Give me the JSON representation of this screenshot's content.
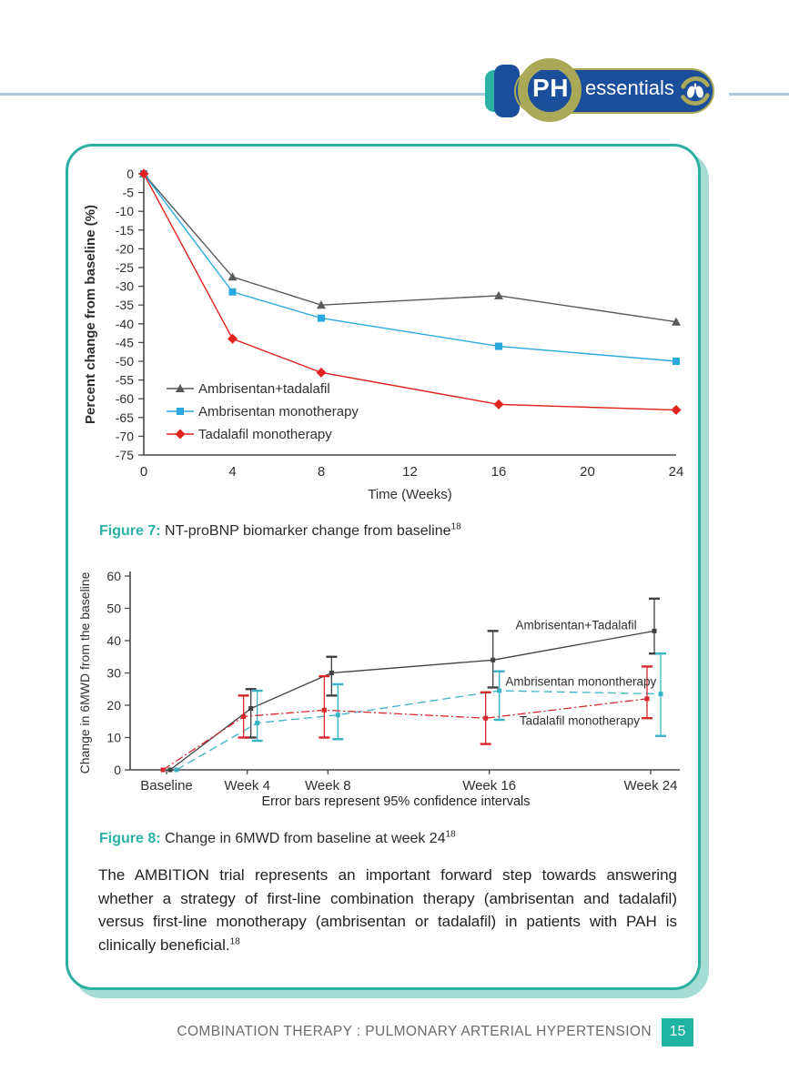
{
  "header": {
    "logo": {
      "ph": "PH",
      "essentials": "essentials"
    }
  },
  "figure7": {
    "label": "Figure 7:",
    "caption": " NT-proBNP biomarker change from baseline",
    "sup": "18"
  },
  "figure8": {
    "label": "Figure 8:",
    "caption": " Change in 6MWD from baseline at week 24",
    "sup": "18"
  },
  "paragraph": {
    "text": "The AMBITION trial represents an important forward step towards answering whether a strategy of first-line combination therapy (ambrisentan and tadalafil) versus first-line monotherapy (ambrisentan or tadalafil) in patients with PAH is clinically beneficial.",
    "sup": "18"
  },
  "footer": {
    "title": "COMBINATION THERAPY : PULMONARY ARTERIAL HYPERTENSION",
    "page": "15"
  },
  "colors": {
    "accent_teal": "#2bafa0",
    "caption_teal": "#2bb3a3",
    "page_badge_teal": "#1fb3a1",
    "header_line_blue": "#a9cadd",
    "logo_blue": "#1b4e9b",
    "logo_olive": "#a9a958",
    "series_gray": "#58595b",
    "series_blue": "#29a9e0",
    "series_red": "#e0231f",
    "series_black": "#3f4041",
    "series_cyan": "#3bb3c6",
    "series_red2": "#d8262d"
  },
  "chart_data": [
    {
      "type": "line",
      "x": [
        0,
        4,
        8,
        16,
        24
      ],
      "x_ticks": [
        0,
        4,
        8,
        12,
        16,
        20,
        24
      ],
      "xlabel": "Time (Weeks)",
      "ylabel": "Percent change from baseline (%)",
      "ylim": [
        -75,
        0
      ],
      "y_tick_step": 5,
      "legend_position": "inside-bottom-left",
      "grid": false,
      "series": [
        {
          "name": "Ambrisentan+tadalafil",
          "marker": "triangle",
          "color": "#58595b",
          "values": [
            0,
            -27.5,
            -35,
            -32.5,
            -39.5
          ]
        },
        {
          "name": "Ambrisentan monotherapy",
          "marker": "square",
          "color": "#29a9e0",
          "values": [
            0,
            -31.5,
            -38.5,
            -46,
            -50
          ]
        },
        {
          "name": "Tadalafil monotherapy",
          "marker": "diamond",
          "color": "#e0231f",
          "values": [
            0,
            -44,
            -53,
            -61.5,
            -63
          ]
        }
      ]
    },
    {
      "type": "line-errorbar",
      "categories": [
        "Baseline",
        "Week 4",
        "Week 8",
        "Week 16",
        "Week 24"
      ],
      "x_weeks": [
        0,
        4,
        8,
        16,
        24
      ],
      "xlabel": "",
      "ylabel": "Change in 6MWD from the baseline",
      "ylim": [
        0,
        60
      ],
      "y_tick_step": 10,
      "grid": false,
      "note": "Error bars represent 95% confidence intervals",
      "series": [
        {
          "name": "Ambrisentan+Tadalafil",
          "line_style": "solid",
          "color": "#3f4041",
          "values": [
            0,
            19,
            30,
            34,
            43
          ],
          "ci_low": [
            null,
            10,
            23,
            25.5,
            36
          ],
          "ci_high": [
            null,
            25,
            35,
            43,
            53
          ]
        },
        {
          "name": "Ambrisentan monontherapy",
          "line_style": "dashed",
          "color": "#3bb3c6",
          "values": [
            0,
            14.5,
            17,
            24.5,
            23.5
          ],
          "ci_low": [
            null,
            9,
            9.5,
            15.5,
            10.5
          ],
          "ci_high": [
            null,
            24.5,
            26.5,
            30.5,
            36
          ]
        },
        {
          "name": "Tadalafil monotherapy",
          "line_style": "dash-dot",
          "color": "#d8262d",
          "values": [
            0,
            16.5,
            18.5,
            16,
            22
          ],
          "ci_low": [
            null,
            10,
            10,
            8,
            16
          ],
          "ci_high": [
            null,
            23,
            29,
            24,
            32
          ]
        }
      ],
      "annotations": [
        {
          "text": "Ambrisentan+Tadalafil",
          "week": 17.3,
          "value": 43.5
        },
        {
          "text": "Ambrisentan monontherapy",
          "week": 16.8,
          "value": 26
        },
        {
          "text": "Tadalafil monotherapy",
          "week": 17.5,
          "value": 14
        }
      ]
    }
  ]
}
